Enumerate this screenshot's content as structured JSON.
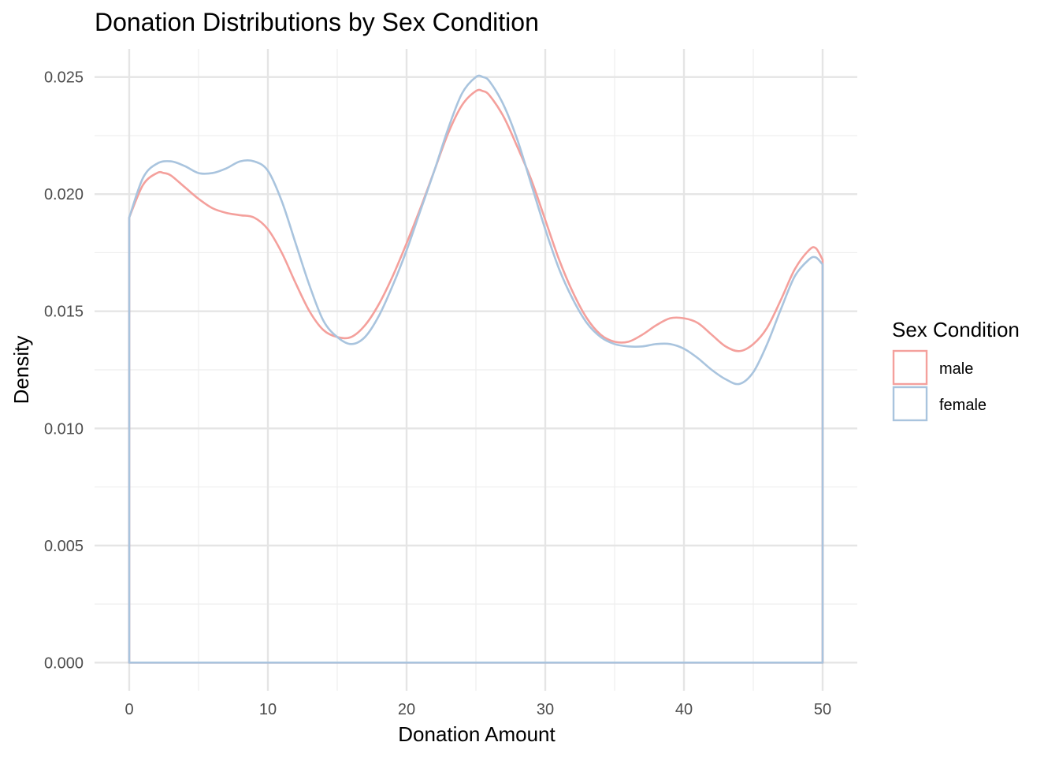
{
  "chart_data": {
    "type": "line",
    "subtype": "density",
    "title": "Donation Distributions by Sex Condition",
    "xlabel": "Donation Amount",
    "ylabel": "Density",
    "xlim": [
      -2.5,
      52.5
    ],
    "ylim": [
      -0.0012,
      0.0262
    ],
    "x_ticks": [
      0,
      10,
      20,
      30,
      40,
      50
    ],
    "y_ticks": [
      0.0,
      0.005,
      0.01,
      0.015,
      0.02,
      0.025
    ],
    "x_tick_labels": [
      "0",
      "10",
      "20",
      "30",
      "40",
      "50"
    ],
    "y_tick_labels": [
      "0.000",
      "0.005",
      "0.010",
      "0.015",
      "0.020",
      "0.025"
    ],
    "grid": true,
    "legend": {
      "title": "Sex Condition",
      "position": "right"
    },
    "series": [
      {
        "name": "male",
        "color": "#f4a09c",
        "x": [
          0,
          1,
          2,
          2.5,
          3,
          4,
          5,
          6,
          7,
          8,
          9,
          10,
          11,
          12,
          13,
          14,
          15,
          16,
          17,
          18,
          19,
          20,
          21,
          22,
          23,
          24,
          25,
          25.5,
          26,
          27,
          28,
          29,
          30,
          31,
          32,
          33,
          34,
          35,
          36,
          37,
          38,
          39,
          40,
          41,
          42,
          43,
          44,
          45,
          46,
          47,
          48,
          49,
          49.5,
          50
        ],
        "y": [
          0.019,
          0.0204,
          0.0209,
          0.0209,
          0.0208,
          0.0203,
          0.0198,
          0.0194,
          0.0192,
          0.0191,
          0.019,
          0.0185,
          0.0175,
          0.0162,
          0.015,
          0.0142,
          0.0139,
          0.0139,
          0.0144,
          0.0153,
          0.0165,
          0.0179,
          0.0194,
          0.021,
          0.0226,
          0.0238,
          0.0244,
          0.0244,
          0.0242,
          0.0233,
          0.022,
          0.0206,
          0.0189,
          0.0172,
          0.0158,
          0.0147,
          0.014,
          0.0137,
          0.0137,
          0.014,
          0.0144,
          0.0147,
          0.0147,
          0.0145,
          0.014,
          0.0135,
          0.0133,
          0.0136,
          0.0143,
          0.0155,
          0.0168,
          0.0176,
          0.0177,
          0.0172
        ]
      },
      {
        "name": "female",
        "color": "#a9c4de",
        "x": [
          0,
          1,
          2,
          3,
          4,
          5,
          6,
          7,
          8,
          9,
          10,
          11,
          12,
          13,
          14,
          15,
          16,
          17,
          18,
          19,
          20,
          21,
          22,
          23,
          24,
          25,
          25.5,
          26,
          27,
          28,
          29,
          30,
          31,
          32,
          33,
          34,
          35,
          36,
          37,
          38,
          39,
          40,
          41,
          42,
          43,
          44,
          45,
          46,
          47,
          48,
          49,
          49.5,
          50
        ],
        "y": [
          0.019,
          0.0207,
          0.0213,
          0.0214,
          0.0212,
          0.0209,
          0.0209,
          0.0211,
          0.0214,
          0.0214,
          0.021,
          0.0197,
          0.0179,
          0.0161,
          0.0146,
          0.0139,
          0.0136,
          0.0139,
          0.0148,
          0.0161,
          0.0176,
          0.0193,
          0.021,
          0.0228,
          0.0243,
          0.025,
          0.025,
          0.0248,
          0.0238,
          0.0223,
          0.0204,
          0.0185,
          0.0168,
          0.0155,
          0.0145,
          0.0139,
          0.0136,
          0.0135,
          0.0135,
          0.0136,
          0.0136,
          0.0134,
          0.013,
          0.0125,
          0.0121,
          0.0119,
          0.0124,
          0.0136,
          0.0151,
          0.0165,
          0.0172,
          0.0173,
          0.017
        ]
      }
    ]
  }
}
